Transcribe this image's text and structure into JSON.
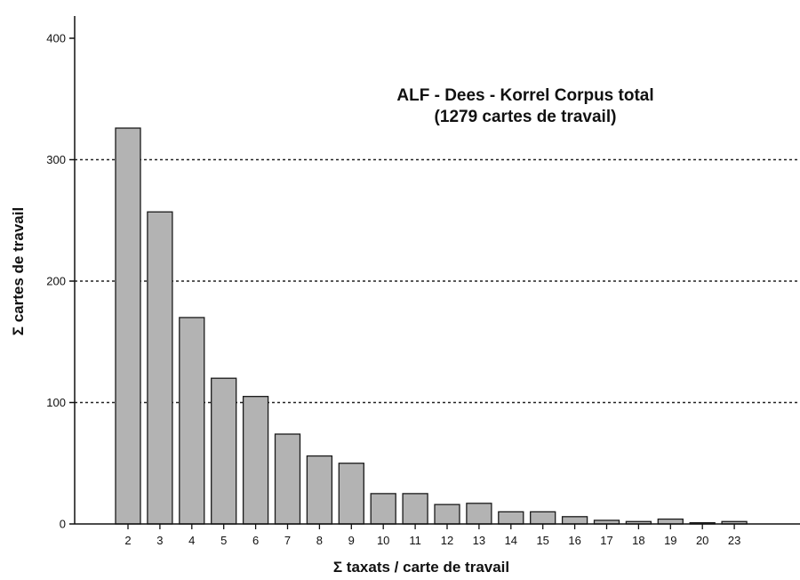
{
  "chart_data": {
    "type": "bar",
    "title": "ALF - Dees - Korrel Corpus total",
    "subtitle": "(1279 cartes de travail)",
    "xlabel": "Σ taxats / carte de travail",
    "ylabel": "Σ cartes de travail",
    "categories": [
      "2",
      "3",
      "4",
      "5",
      "6",
      "7",
      "8",
      "9",
      "10",
      "11",
      "12",
      "13",
      "14",
      "15",
      "16",
      "17",
      "18",
      "19",
      "20",
      "23"
    ],
    "values": [
      326,
      257,
      170,
      120,
      105,
      74,
      56,
      50,
      25,
      25,
      16,
      17,
      10,
      10,
      6,
      3,
      2,
      4,
      1,
      2
    ],
    "ylim": [
      0,
      400
    ],
    "yticks": [
      0,
      100,
      200,
      300,
      400
    ],
    "grid": "horizontal dashed at 100, 200, 300",
    "legend": "none",
    "colors": {
      "bar_fill": "#b3b3b3",
      "bar_stroke": "#1a1a1a",
      "grid": "#222222"
    }
  }
}
